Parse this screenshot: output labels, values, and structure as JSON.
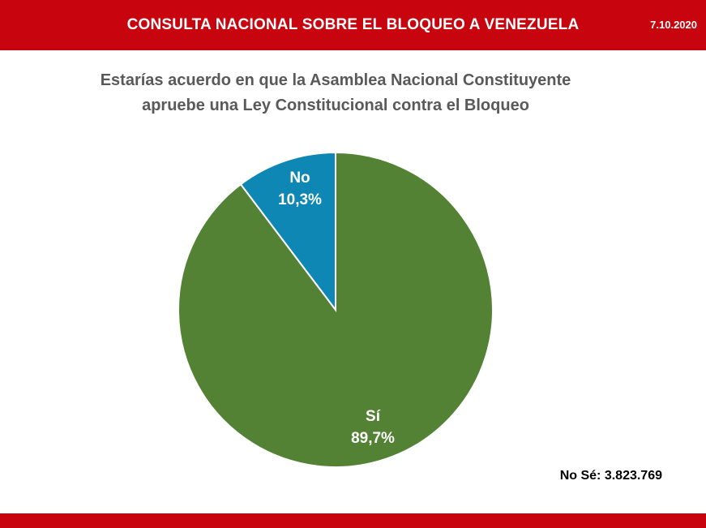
{
  "header": {
    "title": "CONSULTA NACIONAL SOBRE EL BLOQUEO A VENEZUELA",
    "date": "7.10.2020",
    "color": "#c8040e"
  },
  "question": {
    "line1": "Estarías acuerdo en que la Asamblea Nacional Constituyente",
    "line2": "apruebe una Ley Constitucional contra el Bloqueo"
  },
  "chart_data": {
    "type": "pie",
    "title": "Estarías acuerdo en que la Asamblea Nacional Constituyente apruebe una Ley Constitucional contra el Bloqueo",
    "slices": [
      {
        "label": "Sí",
        "value": 89.7,
        "value_label": "89,7%",
        "color": "#548235"
      },
      {
        "label": "No",
        "value": 10.3,
        "value_label": "10,3%",
        "color": "#0e87b4"
      }
    ],
    "legend": "none",
    "annotation": "No Sé: 3.823.769"
  }
}
